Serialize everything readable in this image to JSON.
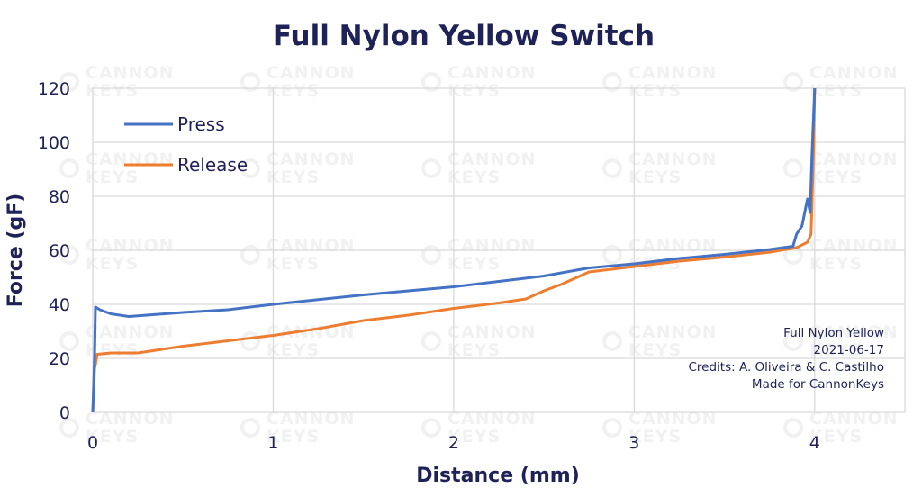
{
  "chart_data": {
    "type": "line",
    "title": "Full Nylon Yellow Switch",
    "xlabel": "Distance (mm)",
    "ylabel": "Force (gF)",
    "xlim": [
      0,
      4.5
    ],
    "ylim": [
      0,
      120
    ],
    "x_ticks": [
      "0",
      "1",
      "2",
      "3",
      "4"
    ],
    "y_ticks": [
      "0",
      "20",
      "40",
      "60",
      "80",
      "100",
      "120"
    ],
    "grid": true,
    "legend_position": "top-left",
    "watermark": "CANNON KEYS",
    "annotation": [
      "Full Nylon Yellow",
      "2021-06-17",
      "Credits: A. Oliveira & C. Castilho",
      "Made for CannonKeys"
    ],
    "series": [
      {
        "name": "Press",
        "color": "#4472c4",
        "points": [
          [
            0.0,
            0
          ],
          [
            0.01,
            20
          ],
          [
            0.015,
            39
          ],
          [
            0.04,
            38
          ],
          [
            0.1,
            36.5
          ],
          [
            0.2,
            35.5
          ],
          [
            0.3,
            36
          ],
          [
            0.5,
            37
          ],
          [
            0.75,
            38
          ],
          [
            1.0,
            40
          ],
          [
            1.5,
            43.5
          ],
          [
            2.0,
            46.5
          ],
          [
            2.5,
            50.5
          ],
          [
            2.75,
            53.5
          ],
          [
            3.0,
            55
          ],
          [
            3.25,
            57
          ],
          [
            3.5,
            58.5
          ],
          [
            3.75,
            60.3
          ],
          [
            3.88,
            61.5
          ],
          [
            3.9,
            66
          ],
          [
            3.93,
            69
          ],
          [
            3.96,
            79
          ],
          [
            3.975,
            74
          ],
          [
            3.985,
            95
          ],
          [
            4.0,
            120
          ]
        ]
      },
      {
        "name": "Release",
        "color": "#ed7d31",
        "points": [
          [
            0.0,
            0
          ],
          [
            0.01,
            16
          ],
          [
            0.025,
            21.5
          ],
          [
            0.1,
            22
          ],
          [
            0.25,
            22
          ],
          [
            0.5,
            24.5
          ],
          [
            0.75,
            26.5
          ],
          [
            1.0,
            28.5
          ],
          [
            1.25,
            31
          ],
          [
            1.5,
            34
          ],
          [
            1.75,
            36
          ],
          [
            2.0,
            38.5
          ],
          [
            2.25,
            40.5
          ],
          [
            2.4,
            42
          ],
          [
            2.5,
            45
          ],
          [
            2.6,
            47.5
          ],
          [
            2.7,
            50.5
          ],
          [
            2.75,
            52
          ],
          [
            3.0,
            54
          ],
          [
            3.25,
            56
          ],
          [
            3.5,
            57.5
          ],
          [
            3.75,
            59.3
          ],
          [
            3.9,
            61
          ],
          [
            3.96,
            63
          ],
          [
            3.98,
            66
          ],
          [
            3.995,
            100
          ],
          [
            4.0,
            120
          ]
        ]
      }
    ]
  }
}
